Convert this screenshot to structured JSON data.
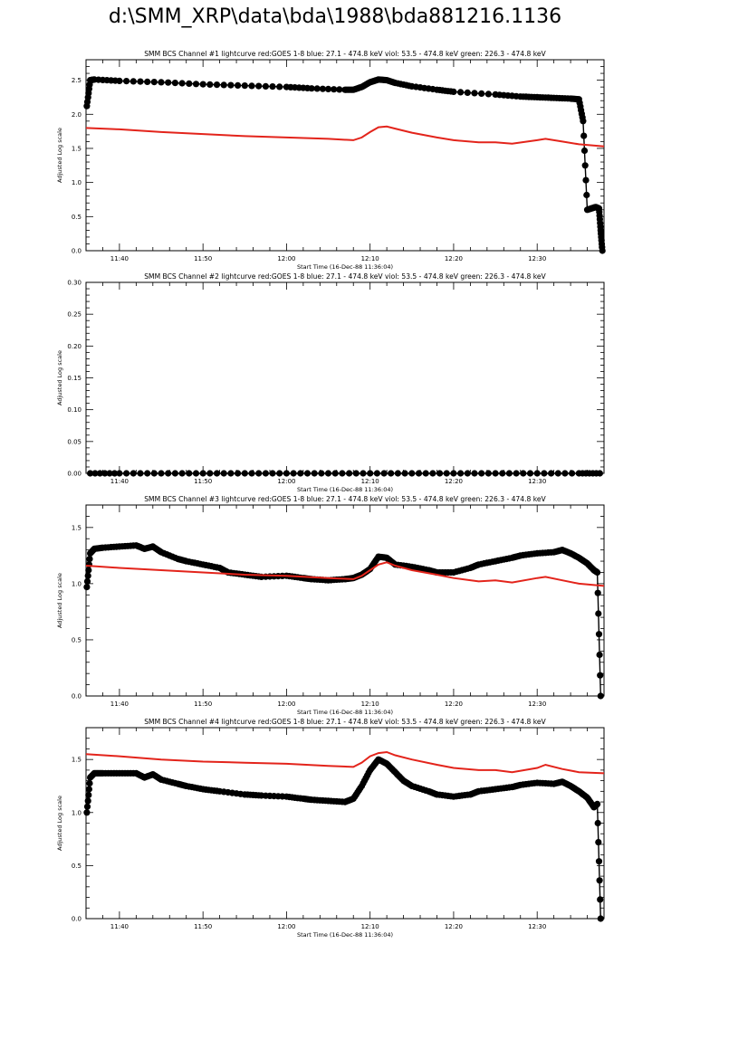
{
  "page": {
    "title": "d:\\SMM_XRP\\data\\bda\\1988\\bda881216.1136"
  },
  "colors": {
    "data": "#000000",
    "goes": "#e3241b",
    "axis": "#000000"
  },
  "chart_data": [
    {
      "type": "line",
      "title": "SMM BCS Channel #1 lightcurve  red:GOES 1-8  blue: 27.1 - 474.8 keV  viol: 53.5 - 474.8 keV  green: 226.3 - 474.8 keV",
      "xlabel": "Start Time (16-Dec-88 11:36:04)",
      "ylabel": "Adjusted Log scale",
      "xlim": [
        36.0,
        98.0
      ],
      "ylim": [
        0.0,
        2.8
      ],
      "x_ticks": [
        40,
        50,
        60,
        70,
        80,
        90
      ],
      "x_tick_labels": [
        "11:40",
        "11:50",
        "12:00",
        "12:10",
        "12:20",
        "12:30"
      ],
      "y_ticks": [
        0.0,
        0.5,
        1.0,
        1.5,
        2.0,
        2.5
      ],
      "y_tick_labels": [
        "0.0",
        "0.5",
        "1.0",
        "1.5",
        "2.0",
        "2.5"
      ],
      "grid": false,
      "series": [
        {
          "style": "points",
          "color": "#000000",
          "x": [
            36.1,
            36.5,
            37,
            40,
            45,
            50,
            55,
            60,
            63,
            67,
            68,
            69,
            70,
            71,
            72,
            73,
            75,
            78,
            80,
            85,
            88,
            90,
            92,
            94,
            95,
            95.5,
            96,
            96.5,
            97,
            97.4,
            97.6,
            97.8
          ],
          "y": [
            2.12,
            2.5,
            2.51,
            2.49,
            2.47,
            2.44,
            2.42,
            2.4,
            2.38,
            2.36,
            2.36,
            2.4,
            2.47,
            2.51,
            2.5,
            2.46,
            2.41,
            2.36,
            2.33,
            2.29,
            2.26,
            2.25,
            2.24,
            2.23,
            2.22,
            1.9,
            0.6,
            0.62,
            0.64,
            0.62,
            0.3,
            0.0
          ]
        },
        {
          "style": "line",
          "color": "#e3241b",
          "x": [
            36,
            40,
            45,
            50,
            55,
            60,
            65,
            68,
            69,
            70,
            71,
            72,
            73,
            75,
            78,
            80,
            83,
            85,
            87,
            90,
            91,
            93,
            95,
            98
          ],
          "y": [
            1.8,
            1.78,
            1.74,
            1.71,
            1.68,
            1.66,
            1.64,
            1.62,
            1.66,
            1.74,
            1.81,
            1.82,
            1.79,
            1.73,
            1.66,
            1.62,
            1.59,
            1.59,
            1.57,
            1.62,
            1.64,
            1.6,
            1.56,
            1.53
          ]
        }
      ]
    },
    {
      "type": "line",
      "title": "SMM BCS Channel #2 lightcurve  red:GOES 1-8  blue: 27.1 - 474.8 keV  viol: 53.5 - 474.8 keV  green: 226.3 - 474.8 keV",
      "xlabel": "Start Time (16-Dec-88 11:36:04)",
      "ylabel": "Adjusted Log scale",
      "xlim": [
        36.0,
        98.0
      ],
      "ylim": [
        0.0,
        0.3
      ],
      "x_ticks": [
        40,
        50,
        60,
        70,
        80,
        90
      ],
      "x_tick_labels": [
        "11:40",
        "11:50",
        "12:00",
        "12:10",
        "12:20",
        "12:30"
      ],
      "y_ticks": [
        0.0,
        0.05,
        0.1,
        0.15,
        0.2,
        0.25,
        0.3
      ],
      "y_tick_labels": [
        "0.00",
        "0.05",
        "0.10",
        "0.15",
        "0.20",
        "0.25",
        "0.30"
      ],
      "grid": false,
      "series": [
        {
          "style": "points",
          "color": "#000000",
          "x": [
            36.5,
            40,
            45,
            50,
            55,
            60,
            65,
            70,
            75,
            80,
            85,
            90,
            95,
            97.5
          ],
          "y": [
            0,
            0,
            0,
            0,
            0,
            0,
            0,
            0,
            0,
            0,
            0,
            0,
            0,
            0
          ]
        }
      ]
    },
    {
      "type": "line",
      "title": "SMM BCS Channel #3 lightcurve  red:GOES 1-8  blue: 27.1 - 474.8 keV  viol: 53.5 - 474.8 keV  green: 226.3 - 474.8 keV",
      "xlabel": "Start Time (16-Dec-88 11:36:04)",
      "ylabel": "Adjusted Log scale",
      "xlim": [
        36.0,
        98.0
      ],
      "ylim": [
        0.0,
        1.7
      ],
      "x_ticks": [
        40,
        50,
        60,
        70,
        80,
        90
      ],
      "x_tick_labels": [
        "11:40",
        "11:50",
        "12:00",
        "12:10",
        "12:20",
        "12:30"
      ],
      "y_ticks": [
        0.0,
        0.5,
        1.0,
        1.5
      ],
      "y_tick_labels": [
        "0.0",
        "0.5",
        "1.0",
        "1.5"
      ],
      "grid": false,
      "series": [
        {
          "style": "points",
          "color": "#000000",
          "x": [
            36.1,
            36.5,
            37,
            38,
            40,
            42,
            43,
            44,
            45,
            47,
            48,
            50,
            52,
            53,
            55,
            57,
            60,
            62,
            63,
            65,
            67,
            68,
            69,
            70,
            71,
            72,
            73,
            75,
            77,
            78,
            80,
            82,
            83,
            85,
            87,
            88,
            90,
            92,
            93,
            94,
            95,
            96,
            96.8,
            97.2,
            97.6
          ],
          "y": [
            0.97,
            1.27,
            1.31,
            1.32,
            1.33,
            1.34,
            1.31,
            1.33,
            1.28,
            1.22,
            1.2,
            1.17,
            1.14,
            1.1,
            1.08,
            1.06,
            1.07,
            1.05,
            1.04,
            1.03,
            1.04,
            1.05,
            1.08,
            1.13,
            1.24,
            1.23,
            1.17,
            1.15,
            1.12,
            1.1,
            1.1,
            1.14,
            1.17,
            1.2,
            1.23,
            1.25,
            1.27,
            1.28,
            1.3,
            1.27,
            1.23,
            1.18,
            1.12,
            1.1,
            0.0
          ]
        },
        {
          "style": "line",
          "color": "#e3241b",
          "x": [
            36,
            40,
            45,
            50,
            55,
            60,
            65,
            68,
            69,
            70,
            71,
            72,
            73,
            75,
            78,
            80,
            83,
            85,
            87,
            90,
            91,
            93,
            95,
            98
          ],
          "y": [
            1.16,
            1.14,
            1.12,
            1.1,
            1.08,
            1.07,
            1.05,
            1.04,
            1.07,
            1.12,
            1.17,
            1.19,
            1.16,
            1.12,
            1.08,
            1.05,
            1.02,
            1.03,
            1.01,
            1.05,
            1.06,
            1.03,
            1.0,
            0.98
          ]
        }
      ]
    },
    {
      "type": "line",
      "title": "SMM BCS Channel #4 lightcurve  red:GOES 1-8  blue: 27.1 - 474.8 keV  viol: 53.5 - 474.8 keV  green: 226.3 - 474.8 keV",
      "xlabel": "Start Time (16-Dec-88 11:36:04)",
      "ylabel": "Adjusted Log scale",
      "xlim": [
        36.0,
        98.0
      ],
      "ylim": [
        0.0,
        1.8
      ],
      "x_ticks": [
        40,
        50,
        60,
        70,
        80,
        90
      ],
      "x_tick_labels": [
        "11:40",
        "11:50",
        "12:00",
        "12:10",
        "12:20",
        "12:30"
      ],
      "y_ticks": [
        0.0,
        0.5,
        1.0,
        1.5
      ],
      "y_tick_labels": [
        "0.0",
        "0.5",
        "1.0",
        "1.5"
      ],
      "grid": false,
      "series": [
        {
          "style": "points",
          "color": "#000000",
          "x": [
            36.1,
            36.5,
            37,
            38,
            40,
            42,
            43,
            44,
            45,
            47,
            48,
            50,
            52,
            55,
            57,
            60,
            62,
            63,
            65,
            67,
            68,
            69,
            70,
            71,
            72,
            73,
            74,
            75,
            77,
            78,
            80,
            82,
            83,
            85,
            87,
            88,
            90,
            92,
            93,
            94,
            95,
            96,
            96.8,
            97.2,
            97.6
          ],
          "y": [
            1.0,
            1.33,
            1.37,
            1.37,
            1.37,
            1.37,
            1.33,
            1.36,
            1.31,
            1.27,
            1.25,
            1.22,
            1.2,
            1.17,
            1.16,
            1.15,
            1.13,
            1.12,
            1.11,
            1.1,
            1.13,
            1.25,
            1.4,
            1.5,
            1.46,
            1.38,
            1.3,
            1.25,
            1.2,
            1.17,
            1.15,
            1.17,
            1.2,
            1.22,
            1.24,
            1.26,
            1.28,
            1.27,
            1.29,
            1.25,
            1.2,
            1.14,
            1.05,
            1.08,
            0.0
          ]
        },
        {
          "style": "line",
          "color": "#e3241b",
          "x": [
            36,
            40,
            45,
            50,
            55,
            60,
            65,
            68,
            69,
            70,
            71,
            72,
            73,
            75,
            78,
            80,
            83,
            85,
            87,
            90,
            91,
            93,
            95,
            98
          ],
          "y": [
            1.55,
            1.53,
            1.5,
            1.48,
            1.47,
            1.46,
            1.44,
            1.43,
            1.47,
            1.53,
            1.56,
            1.57,
            1.54,
            1.5,
            1.45,
            1.42,
            1.4,
            1.4,
            1.38,
            1.42,
            1.45,
            1.41,
            1.38,
            1.37
          ]
        }
      ]
    }
  ]
}
